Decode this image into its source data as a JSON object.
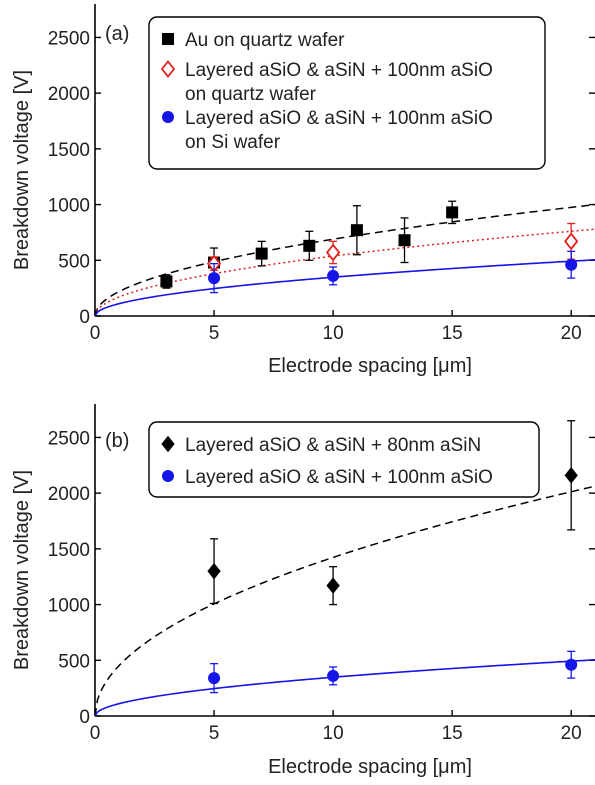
{
  "chart_data": [
    {
      "panel": "(a)",
      "type": "scatter",
      "xlabel": "Electrode spacing [μm]",
      "ylabel": "Breakdown voltage [V]",
      "xlim": [
        0,
        21
      ],
      "ylim": [
        0,
        2800
      ],
      "xticks": [
        0,
        5,
        10,
        15,
        20
      ],
      "yticks": [
        0,
        500,
        1000,
        1500,
        2000,
        2500
      ],
      "legend_position": "top-left",
      "series": [
        {
          "name": "Au on quartz wafer",
          "marker": "square",
          "color": "#000000",
          "x": [
            3,
            5,
            7,
            9,
            11,
            13,
            15
          ],
          "y": [
            310,
            480,
            560,
            630,
            770,
            680,
            930
          ],
          "err": [
            60,
            130,
            110,
            130,
            220,
            200,
            100
          ]
        },
        {
          "name": "Layered aSiO & aSiN + 100nm aSiO on quartz wafer",
          "marker": "diamond-open",
          "color": "#e0201b",
          "x": [
            5,
            10,
            20
          ],
          "y": [
            470,
            570,
            670
          ],
          "err": [
            60,
            100,
            160
          ]
        },
        {
          "name": "Layered aSiO & aSiN + 100nm aSiO on Si wafer",
          "marker": "circle",
          "color": "#1515e8",
          "x": [
            5,
            10,
            20
          ],
          "y": [
            340,
            360,
            460
          ],
          "err": [
            130,
            80,
            120
          ]
        }
      ],
      "fits": [
        {
          "style": "dashed",
          "color": "#000000",
          "coef": 218,
          "exponent": 0.5
        },
        {
          "style": "dotted",
          "color": "#e0201b",
          "coef": 170,
          "exponent": 0.5
        },
        {
          "style": "solid",
          "color": "#1515e8",
          "coef": 110,
          "exponent": 0.5
        }
      ]
    },
    {
      "panel": "(b)",
      "type": "scatter",
      "xlabel": "Electrode spacing [μm]",
      "ylabel": "Breakdown voltage [V]",
      "xlim": [
        0,
        21
      ],
      "ylim": [
        0,
        2800
      ],
      "xticks": [
        0,
        5,
        10,
        15,
        20
      ],
      "yticks": [
        0,
        500,
        1000,
        1500,
        2000,
        2500
      ],
      "legend_position": "top-left",
      "series": [
        {
          "name": "Layered aSiO & aSiN + 80nm aSiN",
          "marker": "diamond",
          "color": "#000000",
          "x": [
            5,
            10,
            20
          ],
          "y": [
            1300,
            1170,
            2160
          ],
          "err": [
            290,
            170,
            490
          ]
        },
        {
          "name": "Layered aSiO & aSiN + 100nm aSiO",
          "marker": "circle",
          "color": "#1515e8",
          "x": [
            5,
            10,
            20
          ],
          "y": [
            340,
            360,
            460
          ],
          "err": [
            130,
            80,
            120
          ]
        }
      ],
      "fits": [
        {
          "style": "dashed",
          "color": "#000000",
          "coef": 450,
          "exponent": 0.5
        },
        {
          "style": "solid",
          "color": "#1515e8",
          "coef": 110,
          "exponent": 0.5
        }
      ]
    }
  ]
}
